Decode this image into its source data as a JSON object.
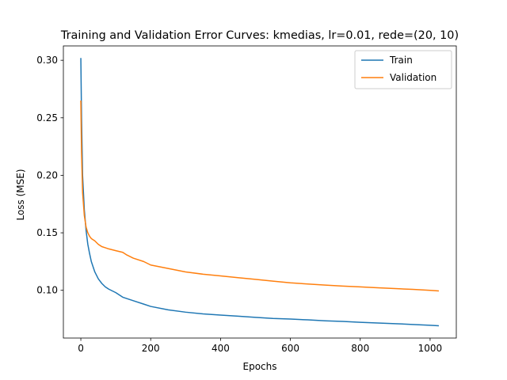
{
  "chart_data": {
    "type": "line",
    "title": "Training and Validation Error Curves: kmedias, lr=0.01, rede=(20, 10)",
    "xlabel": "Epochs",
    "ylabel": "Loss (MSE)",
    "xlim": [
      -50,
      1075
    ],
    "ylim": [
      0.0585,
      0.3125
    ],
    "xticks": [
      0,
      200,
      400,
      600,
      800,
      1000
    ],
    "yticks": [
      0.1,
      0.15,
      0.2,
      0.25,
      0.3
    ],
    "xtick_labels": [
      "0",
      "200",
      "400",
      "600",
      "800",
      "1000"
    ],
    "ytick_labels": [
      "0.10",
      "0.15",
      "0.20",
      "0.25",
      "0.30"
    ],
    "grid": false,
    "legend": "top-right",
    "series": [
      {
        "name": "Train",
        "color": "#1f77b4",
        "x": [
          0,
          2,
          5,
          10,
          15,
          20,
          25,
          30,
          40,
          50,
          60,
          70,
          80,
          100,
          120,
          150,
          180,
          200,
          250,
          300,
          350,
          400,
          450,
          500,
          550,
          600,
          650,
          700,
          750,
          800,
          850,
          900,
          950,
          1000,
          1025
        ],
        "y": [
          0.302,
          0.25,
          0.2,
          0.17,
          0.152,
          0.14,
          0.132,
          0.125,
          0.116,
          0.11,
          0.106,
          0.103,
          0.101,
          0.098,
          0.094,
          0.091,
          0.088,
          0.086,
          0.083,
          0.081,
          0.0795,
          0.0785,
          0.0775,
          0.0765,
          0.0755,
          0.075,
          0.0743,
          0.0735,
          0.073,
          0.0722,
          0.0716,
          0.071,
          0.0703,
          0.0696,
          0.0692
        ]
      },
      {
        "name": "Validation",
        "color": "#ff7f0e",
        "x": [
          0,
          2,
          5,
          10,
          15,
          20,
          25,
          30,
          40,
          50,
          60,
          70,
          80,
          100,
          120,
          130,
          150,
          180,
          200,
          250,
          300,
          350,
          400,
          450,
          500,
          550,
          600,
          650,
          700,
          750,
          800,
          850,
          900,
          950,
          1000,
          1025
        ],
        "y": [
          0.265,
          0.22,
          0.185,
          0.165,
          0.155,
          0.15,
          0.147,
          0.145,
          0.143,
          0.14,
          0.138,
          0.137,
          0.136,
          0.1345,
          0.133,
          0.131,
          0.128,
          0.125,
          0.122,
          0.119,
          0.116,
          0.114,
          0.1125,
          0.111,
          0.1095,
          0.108,
          0.1065,
          0.1055,
          0.1045,
          0.1037,
          0.103,
          0.1022,
          0.1015,
          0.1008,
          0.1,
          0.0995
        ]
      }
    ]
  }
}
